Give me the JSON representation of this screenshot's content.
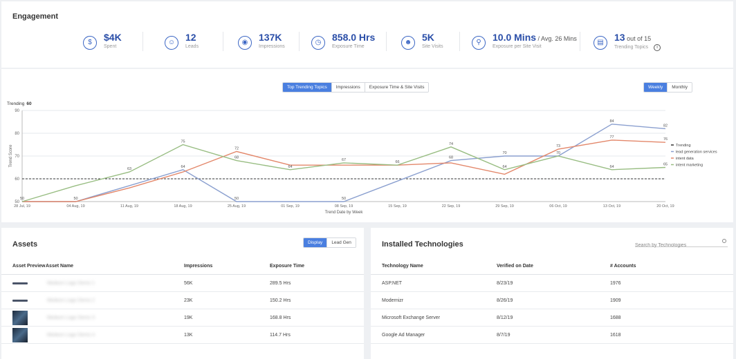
{
  "engagement": {
    "title": "Engagement",
    "kpis": [
      {
        "value": "$4K",
        "suffix": "",
        "label": "Spent",
        "icon": "dollar-icon",
        "glyph": "$"
      },
      {
        "value": "12",
        "suffix": "",
        "label": "Leads",
        "icon": "leads-icon",
        "glyph": "☺"
      },
      {
        "value": "137K",
        "suffix": "",
        "label": "Impressions",
        "icon": "eye-icon",
        "glyph": "◉"
      },
      {
        "value": "858.0 Hrs",
        "suffix": "",
        "label": "Exposure Time",
        "icon": "clock-icon",
        "glyph": "◷"
      },
      {
        "value": "5K",
        "suffix": "",
        "label": "Site Visits",
        "icon": "visitors-icon",
        "glyph": "☻"
      },
      {
        "value": "10.0 Mins",
        "suffix": " / Avg. 26 Mins",
        "label": "Exposure per Site Visit",
        "icon": "search-user-icon",
        "glyph": "⚲"
      },
      {
        "value": "13",
        "suffix": " out of 15",
        "label": "Trending Topics",
        "icon": "trending-topics-icon",
        "glyph": "▤"
      }
    ],
    "info_glyph": "i"
  },
  "chart_tabs": [
    "Top Trending Topics",
    "Impressions",
    "Exposure Time & Site Visits"
  ],
  "period_tabs": [
    "Weekly",
    "Monthly"
  ],
  "chart_data": {
    "type": "line",
    "trending_label": "Trending",
    "trending_value": "60",
    "x": [
      "28 Jul, 19",
      "04 Aug, 19",
      "11 Aug, 19",
      "18 Aug, 19",
      "25 Aug, 19",
      "01 Sep, 19",
      "08 Sep, 19",
      "15 Sep, 19",
      "22 Sep, 19",
      "29 Sep, 19",
      "06 Oct, 19",
      "13 Oct, 19",
      "20 Oct, 19"
    ],
    "xlabel": "Trend Date by Week",
    "ylabel": "Trend Score",
    "ylim": [
      50,
      90
    ],
    "yticks": [
      50,
      60,
      70,
      80,
      90
    ],
    "threshold": 60,
    "series": [
      {
        "name": "lead generation services",
        "color": "#8a9fcf",
        "values": [
          50,
          50,
          57,
          64,
          50,
          50,
          50,
          59,
          68,
          70,
          70,
          84,
          82
        ],
        "labels": [
          "50",
          "50",
          "",
          "64",
          "50",
          "",
          "50",
          "",
          "68",
          "70",
          "",
          "84",
          "82"
        ]
      },
      {
        "name": "intent data",
        "color": "#e3876a",
        "values": [
          50,
          50,
          56,
          63,
          72,
          66,
          66,
          66,
          67,
          62,
          73,
          77,
          76
        ],
        "labels": [
          "",
          "",
          "",
          "",
          "72",
          "",
          "",
          "66",
          "",
          "",
          "73",
          "77",
          "76"
        ]
      },
      {
        "name": "intent marketing",
        "color": "#98bd82",
        "values": [
          50,
          57,
          63,
          75,
          68,
          64,
          67,
          66,
          74,
          64,
          70,
          64,
          65
        ],
        "labels": [
          "",
          "",
          "63",
          "75",
          "68",
          "64",
          "67",
          "",
          "74",
          "64",
          "70",
          "64",
          "65"
        ]
      }
    ],
    "legend": [
      "Trending",
      "lead generation services",
      "intent data",
      "intent marketing"
    ],
    "legend_position": "right"
  },
  "assets": {
    "title": "Assets",
    "tabs": [
      "Display",
      "Lead Gen"
    ],
    "columns": [
      "Asset Preview",
      "Asset Name",
      "Impressions",
      "Exposure Time"
    ],
    "rows": [
      {
        "name": "Medium Logo Demo 1",
        "impressions": "56K",
        "exposure": "289.5 Hrs"
      },
      {
        "name": "Medium Logo Demo 2",
        "impressions": "23K",
        "exposure": "150.2 Hrs"
      },
      {
        "name": "Medium Logo Demo 3",
        "impressions": "19K",
        "exposure": "168.8 Hrs"
      },
      {
        "name": "Medium Logo Demo 4",
        "impressions": "13K",
        "exposure": "114.7 Hrs"
      }
    ]
  },
  "technologies": {
    "title": "Installed Technologies",
    "search_placeholder": "Search by Technologies",
    "columns": [
      "Technology Name",
      "Verified on Date",
      "# Accounts"
    ],
    "rows": [
      {
        "name": "ASP.NET",
        "date": "8/23/19",
        "accounts": "1976"
      },
      {
        "name": "Modernizr",
        "date": "8/26/19",
        "accounts": "1909"
      },
      {
        "name": "Microsoft Exchange Server",
        "date": "8/12/19",
        "accounts": "1688"
      },
      {
        "name": "Google Ad Manager",
        "date": "8/7/19",
        "accounts": "1618"
      }
    ]
  }
}
